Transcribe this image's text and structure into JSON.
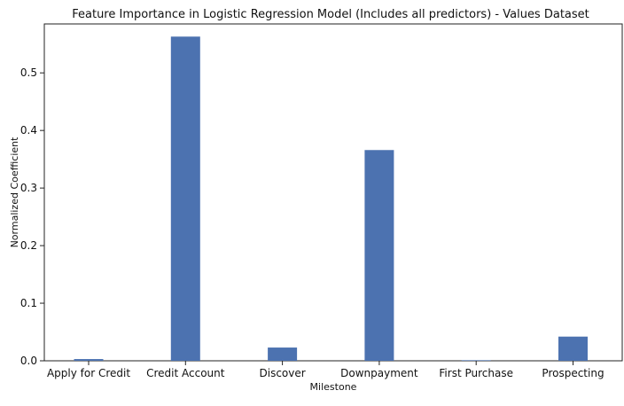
{
  "chart_data": {
    "type": "bar",
    "title": "Feature Importance in Logistic Regression Model (Includes all predictors) - Values Dataset",
    "xlabel": "Milestone",
    "ylabel": "Normalized Coefficient",
    "categories": [
      "Apply for Credit",
      "Credit Account",
      "Discover",
      "Downpayment",
      "First Purchase",
      "Prospecting"
    ],
    "values": [
      0.003,
      0.563,
      0.023,
      0.366,
      0.001,
      0.042
    ],
    "ylim": [
      0,
      0.585
    ],
    "yticks": [
      0.0,
      0.1,
      0.2,
      0.3,
      0.4,
      0.5
    ],
    "ytick_labels": [
      "0.0",
      "0.1",
      "0.2",
      "0.3",
      "0.4",
      "0.5"
    ],
    "bar_color": "#4c72b0",
    "grid": false,
    "legend": "none"
  }
}
